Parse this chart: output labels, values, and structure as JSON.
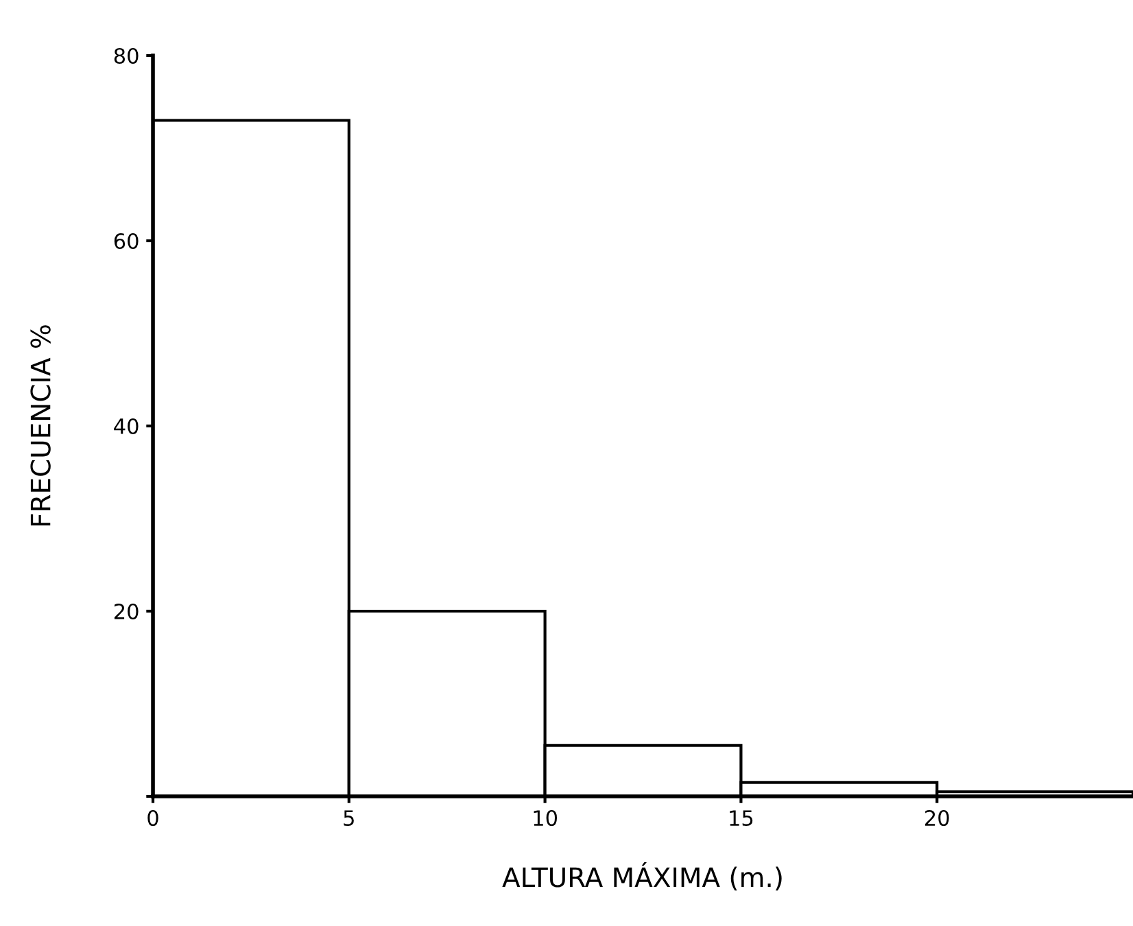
{
  "chart_data": {
    "type": "histogram",
    "xlabel": "ALTURA MÁXIMA (m.)",
    "ylabel": "FRECUENCIA %",
    "bins": [
      0,
      5,
      10,
      15,
      20,
      25
    ],
    "values": [
      73,
      20,
      5.5,
      1.5,
      0.5
    ],
    "color": "#ffffff",
    "xlim": [
      0,
      25
    ],
    "xticks": [
      0,
      5,
      10,
      15,
      20
    ],
    "ylim": [
      0,
      80
    ],
    "yticks": [
      {
        "value": 0,
        "label": null
      },
      20,
      40,
      60,
      80
    ],
    "grid": false
  }
}
